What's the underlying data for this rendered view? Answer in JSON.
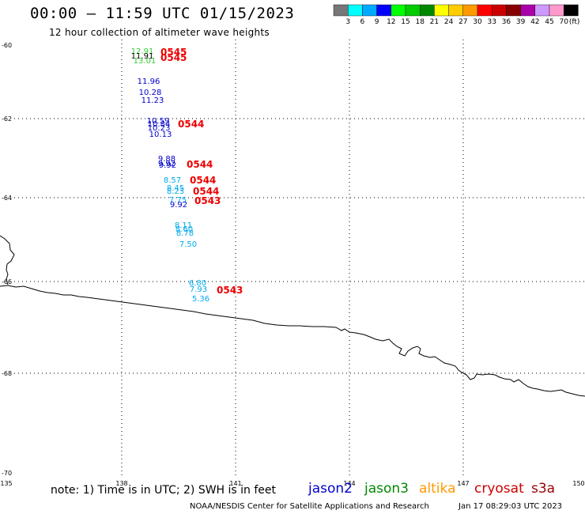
{
  "title": "00:00 – 11:59 UTC 01/15/2023",
  "subtitle": "12 hour collection of altimeter wave heights",
  "note": "note: 1) Time is in UTC; 2) SWH is in feet",
  "satellites": [
    {
      "name": "jason2",
      "color": "#0000cc"
    },
    {
      "name": "jason3",
      "color": "#008800"
    },
    {
      "name": "altika",
      "color": "#ff9900"
    },
    {
      "name": "cryosat",
      "color": "#cc0000"
    },
    {
      "name": "s3a",
      "color": "#990000"
    }
  ],
  "credit": "NOAA/NESDIS Center for Satellite Applications and Research",
  "generated": "Jan 17 08:29:03 UTC 2023",
  "legend": {
    "labels": [
      "3",
      "6",
      "9",
      "12",
      "15",
      "18",
      "21",
      "24",
      "27",
      "30",
      "33",
      "36",
      "39",
      "42",
      "45",
      "70"
    ],
    "unit": "(ft)",
    "colors": [
      "#777777",
      "#00ffff",
      "#00aaff",
      "#0000ff",
      "#00ff00",
      "#00cc00",
      "#008800",
      "#ffff00",
      "#ffcc00",
      "#ff9900",
      "#ff0000",
      "#cc0000",
      "#880000",
      "#aa00aa",
      "#cc99ff",
      "#ff99cc",
      "#000000"
    ]
  },
  "axes": {
    "lon_ticks": [
      "135",
      "138",
      "141",
      "144",
      "147",
      "150"
    ],
    "lat_ticks": [
      "-60",
      "-62",
      "-64",
      "-66",
      "-68",
      "-70"
    ]
  },
  "observations": [
    {
      "text": "12.91",
      "color": "#33cc33"
    },
    {
      "text": "11.91",
      "color": "#000000"
    },
    {
      "text": "13.01",
      "color": "#33cc33"
    },
    {
      "text": "11.96",
      "color": "#0000cc"
    },
    {
      "text": "10.28",
      "color": "#0000cc"
    },
    {
      "text": "11.23",
      "color": "#0000cc"
    },
    {
      "text": "10.59",
      "color": "#0000cc"
    },
    {
      "text": "10.84",
      "color": "#0000cc"
    },
    {
      "text": "10.23",
      "color": "#0000cc"
    },
    {
      "text": "10.13",
      "color": "#0000cc"
    },
    {
      "text": "9.88",
      "color": "#0000cc"
    },
    {
      "text": "9.92",
      "color": "#0000cc"
    },
    {
      "text": "9.92",
      "color": "#0000cc"
    },
    {
      "text": "8.57",
      "color": "#00aaee"
    },
    {
      "text": "8.45",
      "color": "#00aaee"
    },
    {
      "text": "8.23",
      "color": "#00aaee"
    },
    {
      "text": "7.75",
      "color": "#00aaee"
    },
    {
      "text": "9.92",
      "color": "#0000cc"
    },
    {
      "text": "8.11",
      "color": "#00aaee"
    },
    {
      "text": "8.60",
      "color": "#00aaee"
    },
    {
      "text": "8.78",
      "color": "#00aaee"
    },
    {
      "text": "7.50",
      "color": "#00aaee"
    },
    {
      "text": "6.80",
      "color": "#00aaee"
    },
    {
      "text": "7.93",
      "color": "#00aaee"
    },
    {
      "text": "5.36",
      "color": "#00aaee"
    }
  ],
  "times": [
    {
      "text": "0545"
    },
    {
      "text": "0545"
    },
    {
      "text": "0544"
    },
    {
      "text": "0544"
    },
    {
      "text": "0544"
    },
    {
      "text": "0544"
    },
    {
      "text": "0543"
    },
    {
      "text": "0543"
    }
  ]
}
